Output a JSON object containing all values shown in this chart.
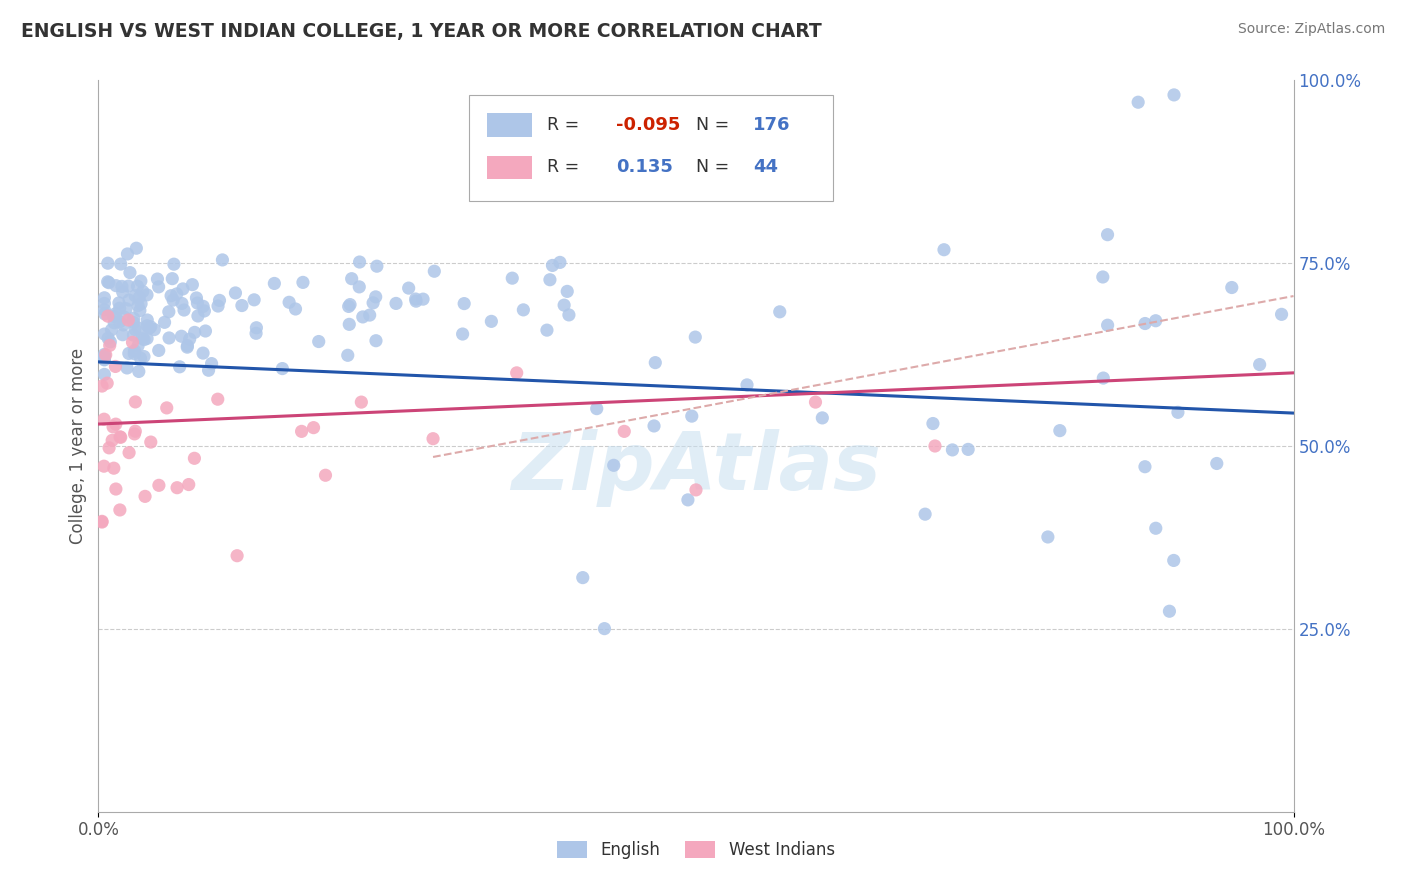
{
  "title": "ENGLISH VS WEST INDIAN COLLEGE, 1 YEAR OR MORE CORRELATION CHART",
  "source_text": "Source: ZipAtlas.com",
  "ylabel": "College, 1 year or more",
  "xlim": [
    0.0,
    1.0
  ],
  "ylim": [
    0.0,
    1.0
  ],
  "legend_english_r": "-0.095",
  "legend_english_n": "176",
  "legend_westindian_r": "0.135",
  "legend_westindian_n": "44",
  "english_color": "#aec6e8",
  "westindian_color": "#f4a8be",
  "english_line_color": "#2255aa",
  "westindian_line_color": "#cc4477",
  "trendline_color_dashed": "#cccccc",
  "watermark": "ZipAtlas",
  "background_color": "#ffffff",
  "grid_color": "#cccccc",
  "r_color_negative": "#cc2200",
  "r_color_positive": "#4472c4",
  "n_color": "#4472c4",
  "label_color": "#4472c4",
  "title_color": "#333333",
  "source_color": "#777777"
}
